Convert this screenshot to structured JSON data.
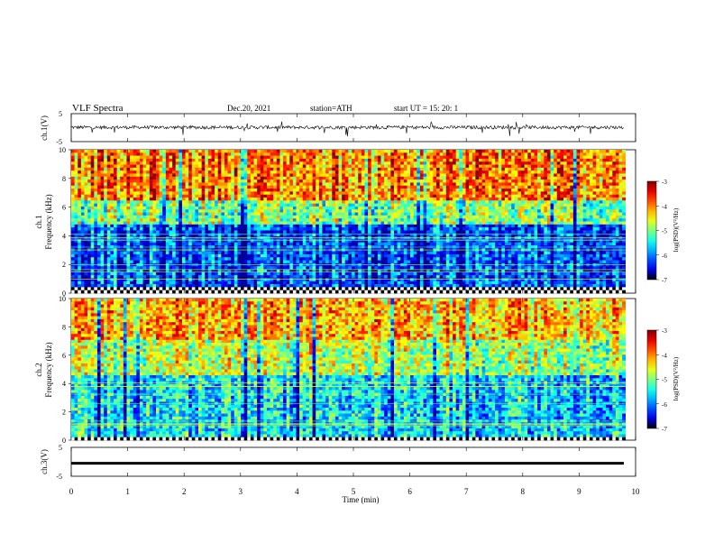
{
  "header": {
    "title": "VLF  Spectra",
    "date": "Dec.20, 2021",
    "station": "station=ATH",
    "start": "start  UT  =    15: 20: 1"
  },
  "chart_data": [
    {
      "type": "line",
      "panel": "ch1_waveform",
      "ylabel": "ch.1(V)",
      "ylim": [
        -5,
        5
      ],
      "yticks": [
        "5",
        "-5"
      ],
      "xlim": [
        0,
        10
      ],
      "baseline": 0.1,
      "noise_amplitude": 0.6,
      "spikes_min": -3.2,
      "spikes_max": 2.4
    },
    {
      "type": "heatmap",
      "panel": "ch1_spectrogram",
      "ylabel": "ch.1\nFrequency (kHz)",
      "ylabel_line1": "ch.1",
      "ylabel_line2": "Frequency (kHz)",
      "xlim": [
        0,
        9.82
      ],
      "ylim": [
        0,
        10
      ],
      "yticks": [
        "0",
        "2",
        "4",
        "6",
        "8",
        "10"
      ],
      "colorbar": {
        "label": "log(PSD)(V²/Hz)",
        "range": [
          -7,
          -3
        ],
        "ticks": [
          "-3",
          "-4",
          "-5",
          "-6",
          "-7"
        ]
      },
      "bands_khz": [
        {
          "from": 0.0,
          "to": 0.5,
          "level": "black/white"
        },
        {
          "from": 0.5,
          "to": 4.8,
          "level": -6.2
        },
        {
          "from": 4.8,
          "to": 6.5,
          "level": -5.0
        },
        {
          "from": 6.5,
          "to": 10.0,
          "level": -4.0
        }
      ]
    },
    {
      "type": "heatmap",
      "panel": "ch2_spectrogram",
      "ylabel": "ch.2\nFrequency (kHz)",
      "ylabel_line1": "ch.2",
      "ylabel_line2": "Frequency (kHz)",
      "xlim": [
        0,
        9.82
      ],
      "ylim": [
        0,
        10
      ],
      "yticks": [
        "0",
        "2",
        "4",
        "6",
        "8",
        "10"
      ],
      "colorbar": {
        "label": "log(PSD)(V²/Hz)",
        "range": [
          -7,
          -3
        ],
        "ticks": [
          "-3",
          "-4",
          "-5",
          "-6",
          "-7"
        ]
      },
      "bands_khz": [
        {
          "from": 0.0,
          "to": 0.3,
          "level": "black/white"
        },
        {
          "from": 0.3,
          "to": 4.5,
          "level": -5.6
        },
        {
          "from": 4.5,
          "to": 7.0,
          "level": -4.8
        },
        {
          "from": 7.0,
          "to": 10.0,
          "level": -4.2
        }
      ]
    },
    {
      "type": "line",
      "panel": "ch3_waveform",
      "ylabel": "ch.3(V)",
      "ylim": [
        -5,
        5
      ],
      "yticks": [
        "5",
        "-5"
      ],
      "xlim": [
        0,
        10
      ],
      "baseline": -0.5,
      "xlabel": "Time  (min)",
      "xticks": [
        "0",
        "1",
        "2",
        "3",
        "4",
        "5",
        "6",
        "7",
        "8",
        "9",
        "10"
      ]
    }
  ]
}
